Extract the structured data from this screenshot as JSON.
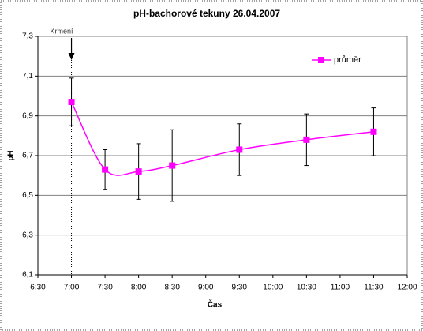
{
  "chart_data": {
    "type": "line",
    "title": "pH-bachorové tekuny 26.04.2007",
    "xlabel": "Čas",
    "ylabel": "pH",
    "x": [
      7,
      7.5,
      8,
      8.5,
      9.5,
      10.5,
      11.5
    ],
    "series": [
      {
        "name": "průměr",
        "color": "#ff00ff",
        "values": [
          6.97,
          6.63,
          6.62,
          6.65,
          6.73,
          6.78,
          6.82
        ],
        "errors": [
          0.12,
          0.1,
          0.14,
          0.18,
          0.13,
          0.13,
          0.12
        ]
      }
    ],
    "xlim": [
      6.5,
      12
    ],
    "xticks": [
      {
        "value": 6.5,
        "label": "6:30"
      },
      {
        "value": 7,
        "label": "7:00"
      },
      {
        "value": 7.5,
        "label": "7:30"
      },
      {
        "value": 8,
        "label": "8:00"
      },
      {
        "value": 8.5,
        "label": "8:30"
      },
      {
        "value": 9,
        "label": "9:00"
      },
      {
        "value": 9.5,
        "label": "9:30"
      },
      {
        "value": 10,
        "label": "10:00"
      },
      {
        "value": 10.5,
        "label": "10:30"
      },
      {
        "value": 11,
        "label": "11:00"
      },
      {
        "value": 11.5,
        "label": "11:30"
      },
      {
        "value": 12,
        "label": "12:00"
      }
    ],
    "ylim": [
      6.1,
      7.3
    ],
    "yticks": [
      {
        "value": 6.1,
        "label": "6,1"
      },
      {
        "value": 6.3,
        "label": "6,3"
      },
      {
        "value": 6.5,
        "label": "6,5"
      },
      {
        "value": 6.7,
        "label": "6,7"
      },
      {
        "value": 6.9,
        "label": "6,9"
      },
      {
        "value": 7.1,
        "label": "7,1"
      },
      {
        "value": 7.3,
        "label": "7,3"
      }
    ],
    "grid": true,
    "legend": "upper right",
    "annotation": {
      "text": "Krmení",
      "x": 7
    }
  }
}
